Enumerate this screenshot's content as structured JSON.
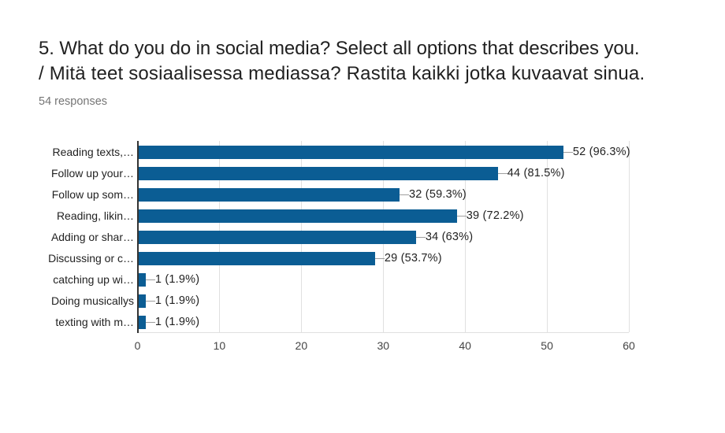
{
  "header": {
    "title_line1": "5. What do you do in social media? Select all options that describes you.",
    "title_line2": "/ Mitä teet sosiaalisessa mediassa? Rastita kaikki jotka kuvaavat sinua.",
    "responses_label": "54 responses"
  },
  "chart_data": {
    "type": "bar",
    "orientation": "horizontal",
    "title": "5. What do you do in social media? Select all options that describes you. / Mitä teet sosiaalisessa mediassa? Rastita kaikki jotka kuvaavat sinua.",
    "subtitle": "54 responses",
    "categories": [
      "Reading texts,…",
      "Follow up your…",
      "Follow up som…",
      "Reading, likin…",
      "Adding or shar…",
      "Discussing or c…",
      "catching up wi…",
      "Doing musicallys",
      "texting with m…"
    ],
    "values": [
      52,
      44,
      32,
      39,
      34,
      29,
      1,
      1,
      1
    ],
    "value_labels": [
      "52 (96.3%)",
      "44 (81.5%)",
      "32 (59.3%)",
      "39 (72.2%)",
      "34 (63%)",
      "29 (53.7%)",
      "1 (1.9%)",
      "1 (1.9%)",
      "1 (1.9%)"
    ],
    "xlim": [
      0,
      60
    ],
    "x_ticks": [
      0,
      10,
      20,
      30,
      40,
      50,
      60
    ],
    "grid": true,
    "legend": "none",
    "colors": {
      "bar": "#0b5d94",
      "gridline": "#e0e0e0",
      "axis_baseline": "#333333",
      "stem": "#9e9e9e",
      "value_label_text": "#222222",
      "category_label_text": "#222222",
      "tick_label_text": "#444444",
      "title_text": "#212121",
      "subtitle_text": "#757575",
      "background": "#ffffff"
    }
  }
}
